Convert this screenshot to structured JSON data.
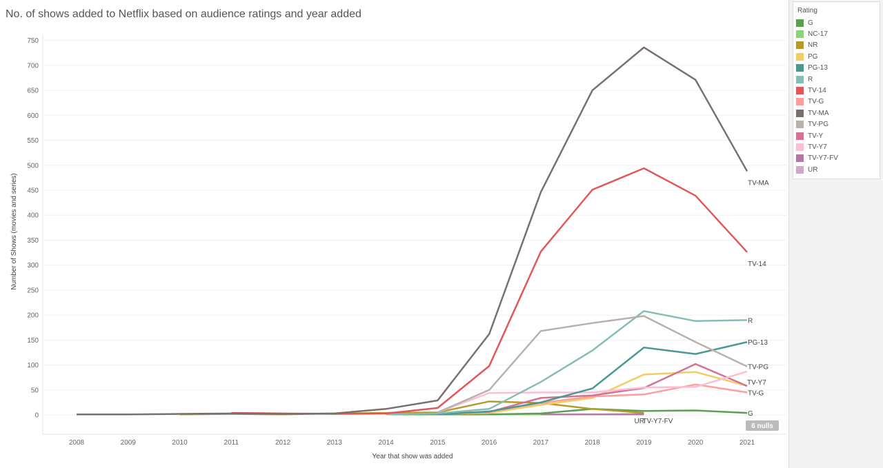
{
  "title": "No. of shows added to Netflix based on audience ratings and year added",
  "legend_title": "Rating",
  "nulls_badge": "6 nulls",
  "chart_data": {
    "type": "line",
    "title": "No. of shows added to Netflix based on audience ratings and year added",
    "xlabel": "Year that show was added",
    "ylabel": "Number of Shows (movies and series)",
    "ylim": [
      -40,
      770
    ],
    "yticks": [
      0,
      50,
      100,
      150,
      200,
      250,
      300,
      350,
      400,
      450,
      500,
      550,
      600,
      650,
      700,
      750
    ],
    "x": [
      2008,
      2009,
      2010,
      2011,
      2012,
      2013,
      2014,
      2015,
      2016,
      2017,
      2018,
      2019,
      2020,
      2021
    ],
    "series": [
      {
        "name": "G",
        "color": "#59a14f",
        "label": "G",
        "points": [
          [
            2014,
            1
          ],
          [
            2015,
            1
          ],
          [
            2016,
            1
          ],
          [
            2017,
            3
          ],
          [
            2018,
            12
          ],
          [
            2019,
            8
          ],
          [
            2020,
            9
          ],
          [
            2021,
            4
          ]
        ]
      },
      {
        "name": "NC-17",
        "color": "#8cd17d",
        "label": "",
        "points": [
          [
            2016,
            1
          ],
          [
            2017,
            1
          ],
          [
            2018,
            1
          ],
          [
            2019,
            2
          ]
        ]
      },
      {
        "name": "NR",
        "color": "#b6992d",
        "label": "",
        "points": [
          [
            2010,
            1
          ],
          [
            2011,
            2
          ],
          [
            2012,
            1
          ],
          [
            2013,
            3
          ],
          [
            2014,
            4
          ],
          [
            2015,
            5
          ],
          [
            2016,
            27
          ],
          [
            2017,
            24
          ],
          [
            2018,
            12
          ],
          [
            2019,
            4
          ]
        ]
      },
      {
        "name": "PG",
        "color": "#f1ce63",
        "label": "",
        "points": [
          [
            2015,
            2
          ],
          [
            2016,
            4
          ],
          [
            2017,
            20
          ],
          [
            2018,
            34
          ],
          [
            2019,
            81
          ],
          [
            2020,
            86
          ],
          [
            2021,
            58
          ]
        ]
      },
      {
        "name": "PG-13",
        "color": "#499894",
        "label": "PG-13",
        "points": [
          [
            2015,
            1
          ],
          [
            2016,
            7
          ],
          [
            2017,
            25
          ],
          [
            2018,
            53
          ],
          [
            2019,
            135
          ],
          [
            2020,
            122
          ],
          [
            2021,
            146
          ]
        ]
      },
      {
        "name": "R",
        "color": "#86bcb6",
        "label": "R",
        "points": [
          [
            2014,
            1
          ],
          [
            2015,
            3
          ],
          [
            2016,
            12
          ],
          [
            2017,
            66
          ],
          [
            2018,
            129
          ],
          [
            2019,
            208
          ],
          [
            2020,
            188
          ],
          [
            2021,
            190
          ]
        ]
      },
      {
        "name": "TV-14",
        "color": "#e15759",
        "label": "TV-14",
        "points": [
          [
            2011,
            4
          ],
          [
            2012,
            3
          ],
          [
            2013,
            2
          ],
          [
            2014,
            3
          ],
          [
            2015,
            14
          ],
          [
            2016,
            98
          ],
          [
            2017,
            327
          ],
          [
            2018,
            451
          ],
          [
            2019,
            494
          ],
          [
            2020,
            439
          ],
          [
            2021,
            326
          ]
        ]
      },
      {
        "name": "TV-G",
        "color": "#ff9d9a",
        "label": "TV-G",
        "points": [
          [
            2015,
            3
          ],
          [
            2016,
            6
          ],
          [
            2017,
            24
          ],
          [
            2018,
            37
          ],
          [
            2019,
            41
          ],
          [
            2020,
            61
          ],
          [
            2021,
            45
          ]
        ]
      },
      {
        "name": "TV-MA",
        "color": "#79706e",
        "label": "TV-MA",
        "points": [
          [
            2008,
            1
          ],
          [
            2009,
            1
          ],
          [
            2010,
            2
          ],
          [
            2011,
            3
          ],
          [
            2012,
            2
          ],
          [
            2013,
            3
          ],
          [
            2014,
            12
          ],
          [
            2015,
            29
          ],
          [
            2016,
            162
          ],
          [
            2017,
            446
          ],
          [
            2018,
            650
          ],
          [
            2019,
            736
          ],
          [
            2020,
            671
          ],
          [
            2021,
            488
          ]
        ]
      },
      {
        "name": "TV-PG",
        "color": "#bab0ac",
        "label": "TV-PG",
        "points": [
          [
            2015,
            5
          ],
          [
            2016,
            50
          ],
          [
            2017,
            168
          ],
          [
            2018,
            184
          ],
          [
            2019,
            198
          ],
          [
            2020,
            146
          ],
          [
            2021,
            97
          ]
        ]
      },
      {
        "name": "TV-Y",
        "color": "#d37295",
        "label": "",
        "points": [
          [
            2015,
            2
          ],
          [
            2016,
            6
          ],
          [
            2017,
            34
          ],
          [
            2018,
            39
          ],
          [
            2019,
            54
          ],
          [
            2020,
            102
          ],
          [
            2021,
            58
          ]
        ]
      },
      {
        "name": "TV-Y7",
        "color": "#fabfd2",
        "label": "TV-Y7",
        "points": [
          [
            2015,
            5
          ],
          [
            2016,
            44
          ],
          [
            2017,
            45
          ],
          [
            2018,
            45
          ],
          [
            2019,
            55
          ],
          [
            2020,
            56
          ],
          [
            2021,
            87
          ]
        ]
      },
      {
        "name": "TV-Y7-FV",
        "color": "#b07aa1",
        "label": "TV-Y7-FV",
        "points": [
          [
            2017,
            1
          ],
          [
            2018,
            1
          ],
          [
            2019,
            1
          ]
        ]
      },
      {
        "name": "UR",
        "color": "#d4a6c8",
        "label": "UR",
        "points": [
          [
            2018,
            1
          ],
          [
            2019,
            1
          ]
        ]
      }
    ]
  }
}
